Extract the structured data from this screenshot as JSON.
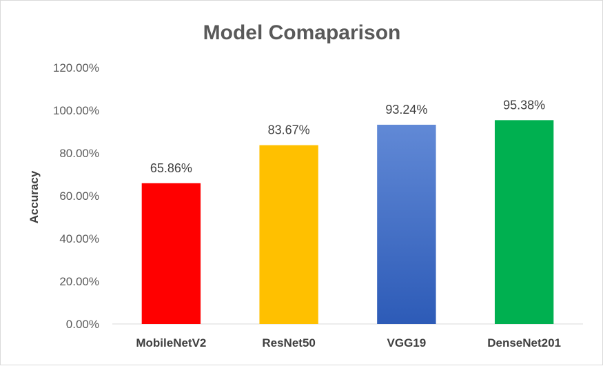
{
  "chart_data": {
    "type": "bar",
    "title": "Model Comaparison",
    "xlabel": "",
    "ylabel": "Accuracy",
    "categories": [
      "MobileNetV2",
      "ResNet50",
      "VGG19",
      "DenseNet201"
    ],
    "values": [
      65.86,
      83.67,
      93.24,
      95.38
    ],
    "data_labels": [
      "65.86%",
      "83.67%",
      "93.24%",
      "95.38%"
    ],
    "ylim": [
      0,
      120
    ],
    "yticks": [
      0,
      20,
      40,
      60,
      80,
      100,
      120
    ],
    "ytick_labels": [
      "0.00%",
      "20.00%",
      "40.00%",
      "60.00%",
      "80.00%",
      "100.00%",
      "120.00%"
    ],
    "colors": [
      "#ff0000",
      "#ffc000",
      "#4472c4",
      "#00b050"
    ],
    "grid": false,
    "legend": "none"
  }
}
